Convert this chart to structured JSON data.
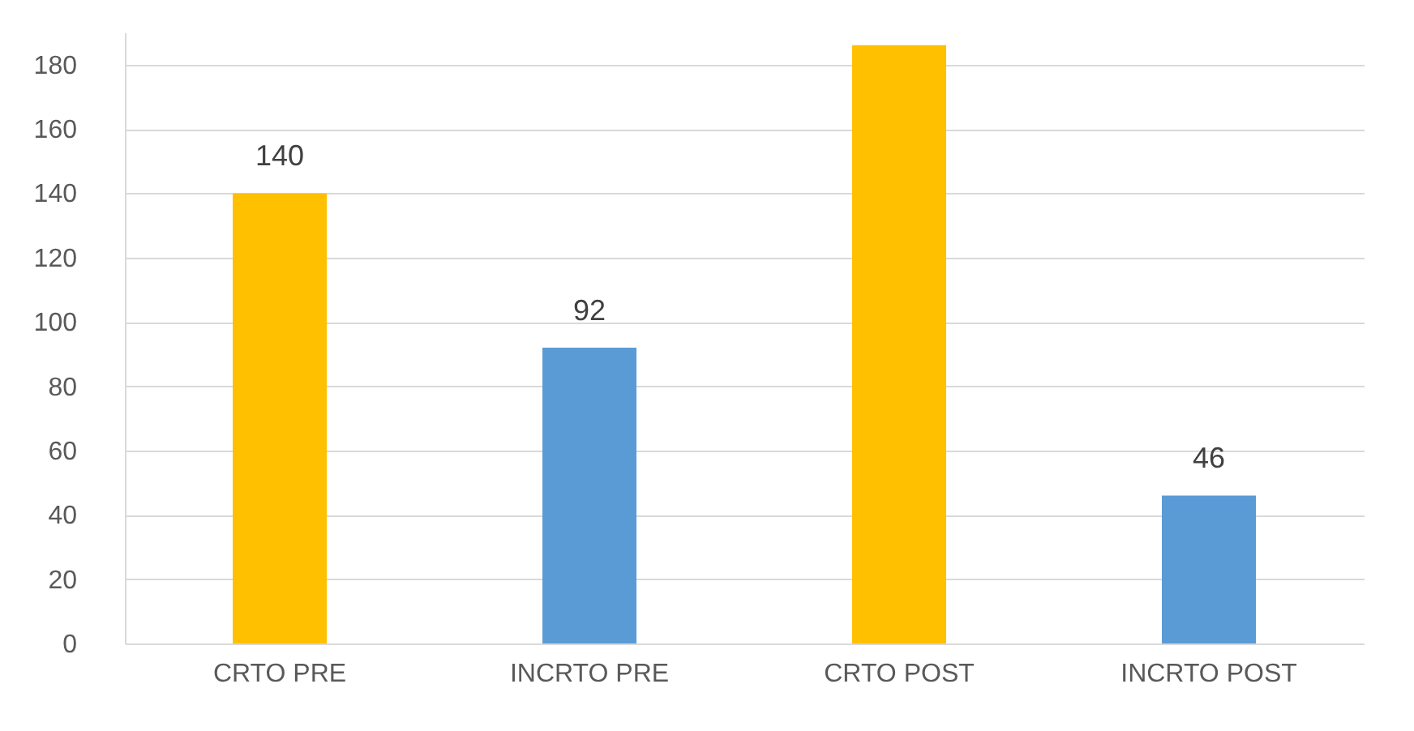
{
  "chart_data": {
    "type": "bar",
    "categories": [
      "CRTO PRE",
      "INCRTO PRE",
      "CRTO POST",
      "INCRTO POST"
    ],
    "values": [
      140,
      92,
      186,
      46
    ],
    "colors": [
      "#ffc000",
      "#5b9bd5",
      "#ffc000",
      "#5b9bd5"
    ],
    "value_labels": [
      "140",
      "92",
      null,
      "46"
    ],
    "ylim": [
      0,
      190
    ],
    "yticks": [
      0,
      20,
      40,
      60,
      80,
      100,
      120,
      140,
      160,
      180
    ],
    "grid": "y"
  }
}
